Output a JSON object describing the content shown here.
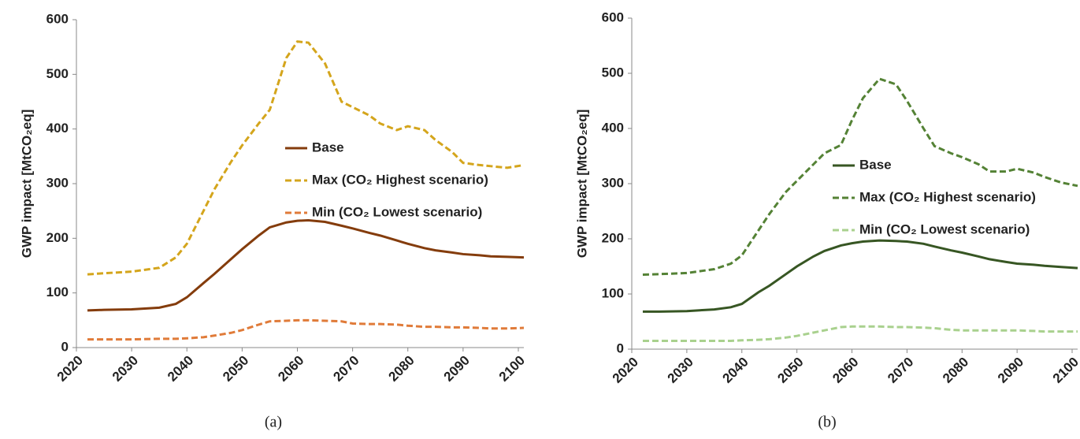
{
  "chart_data": [
    {
      "type": "line",
      "caption": "(a)",
      "ylabel": "GWP impact [MtCO₂eq]",
      "x": [
        2022,
        2025,
        2030,
        2035,
        2038,
        2040,
        2043,
        2045,
        2048,
        2050,
        2053,
        2055,
        2058,
        2060,
        2062,
        2065,
        2068,
        2070,
        2073,
        2075,
        2078,
        2080,
        2083,
        2085,
        2088,
        2090,
        2093,
        2095,
        2098,
        2101
      ],
      "xlim": [
        2020,
        2101
      ],
      "xticks": [
        2020,
        2030,
        2040,
        2050,
        2060,
        2070,
        2080,
        2090,
        2100
      ],
      "ylim": [
        0,
        600
      ],
      "yticks": [
        0,
        100,
        200,
        300,
        400,
        500,
        600
      ],
      "grid": false,
      "series": [
        {
          "name": "Base",
          "color": "#843c0c",
          "dash": false,
          "values": [
            68,
            69,
            70,
            73,
            80,
            92,
            118,
            135,
            162,
            180,
            205,
            220,
            229,
            232,
            233,
            230,
            223,
            218,
            210,
            205,
            196,
            190,
            182,
            178,
            174,
            171,
            169,
            167,
            166,
            165
          ]
        },
        {
          "name": "Max (CO₂ Highest scenario)",
          "color": "#d4a51c",
          "dash": true,
          "values": [
            134,
            136,
            139,
            146,
            165,
            190,
            250,
            290,
            340,
            370,
            410,
            435,
            530,
            560,
            558,
            520,
            450,
            440,
            425,
            410,
            398,
            405,
            398,
            380,
            358,
            338,
            334,
            332,
            329,
            334
          ]
        },
        {
          "name": "Min (CO₂ Lowest scenario)",
          "color": "#e07b39",
          "dash": true,
          "values": [
            15,
            15,
            15,
            16,
            16,
            17,
            19,
            22,
            27,
            32,
            42,
            48,
            49,
            50,
            50,
            49,
            48,
            44,
            43,
            43,
            42,
            40,
            38,
            38,
            37,
            37,
            36,
            35,
            35,
            36
          ]
        }
      ]
    },
    {
      "type": "line",
      "caption": "(b)",
      "ylabel": "GWP impact [MtCO₂eq]",
      "x": [
        2022,
        2025,
        2030,
        2035,
        2038,
        2040,
        2043,
        2045,
        2048,
        2050,
        2053,
        2055,
        2058,
        2060,
        2062,
        2065,
        2068,
        2070,
        2073,
        2075,
        2078,
        2080,
        2083,
        2085,
        2088,
        2090,
        2093,
        2095,
        2098,
        2101
      ],
      "xlim": [
        2020,
        2101
      ],
      "xticks": [
        2020,
        2030,
        2040,
        2050,
        2060,
        2070,
        2080,
        2090,
        2100
      ],
      "ylim": [
        0,
        600
      ],
      "yticks": [
        0,
        100,
        200,
        300,
        400,
        500,
        600
      ],
      "grid": false,
      "series": [
        {
          "name": "Base",
          "color": "#375623",
          "dash": false,
          "values": [
            68,
            68,
            69,
            72,
            76,
            82,
            103,
            115,
            136,
            150,
            168,
            178,
            188,
            192,
            195,
            197,
            196,
            195,
            191,
            186,
            179,
            175,
            168,
            163,
            158,
            155,
            153,
            151,
            149,
            147
          ]
        },
        {
          "name": "Max (CO₂ Highest scenario)",
          "color": "#548235",
          "dash": true,
          "values": [
            135,
            136,
            138,
            145,
            155,
            170,
            215,
            245,
            285,
            305,
            335,
            355,
            370,
            415,
            455,
            490,
            480,
            450,
            400,
            368,
            355,
            348,
            335,
            322,
            322,
            327,
            320,
            312,
            302,
            296
          ]
        },
        {
          "name": "Min (CO₂ Lowest scenario)",
          "color": "#a9d18e",
          "dash": true,
          "values": [
            15,
            15,
            15,
            15,
            15,
            16,
            17,
            18,
            21,
            24,
            30,
            34,
            40,
            41,
            41,
            41,
            40,
            40,
            39,
            38,
            35,
            34,
            34,
            34,
            34,
            34,
            33,
            32,
            32,
            32
          ]
        }
      ]
    }
  ]
}
